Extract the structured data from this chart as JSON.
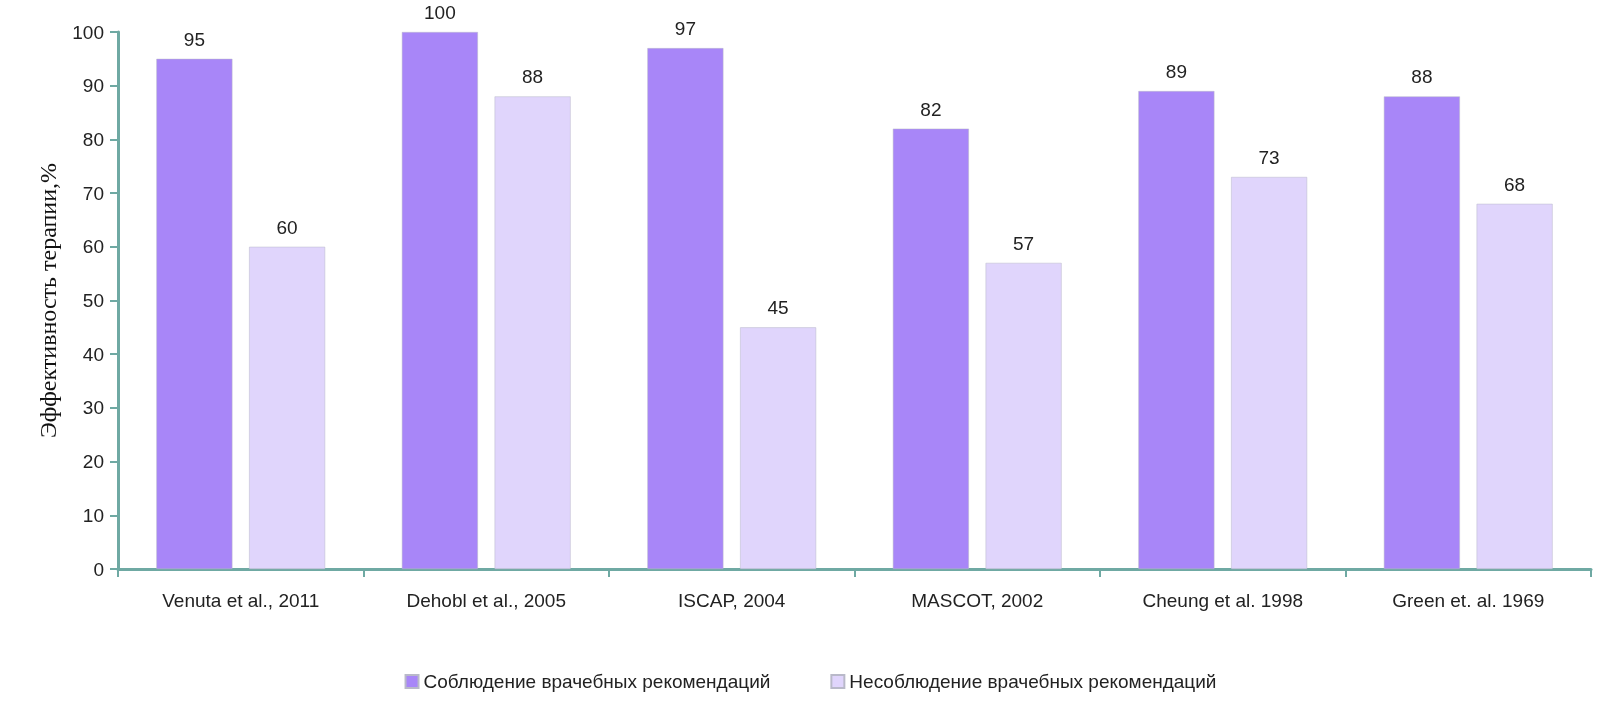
{
  "chart_data": {
    "type": "bar",
    "ylabel": "Эффективность терапии,%",
    "categories": [
      "Venuta et al., 2011",
      "Dehobl et al., 2005",
      "ISCAP, 2004",
      "MASCOT, 2002",
      "Cheung et al. 1998",
      "Green et. al. 1969"
    ],
    "series": [
      {
        "name": "Соблюдение врачебных рекомендаций",
        "color": "#a886f8",
        "values": [
          95,
          100,
          97,
          82,
          89,
          88
        ]
      },
      {
        "name": "Несоблюдение врачебных рекомендаций",
        "color": "#e0d5fc",
        "values": [
          60,
          88,
          45,
          57,
          73,
          68
        ]
      }
    ],
    "ylim": [
      0,
      100
    ],
    "yticks": [
      0,
      10,
      20,
      30,
      40,
      50,
      60,
      70,
      80,
      90,
      100
    ],
    "grid": false,
    "legend": "bottom",
    "data_labels": true
  }
}
